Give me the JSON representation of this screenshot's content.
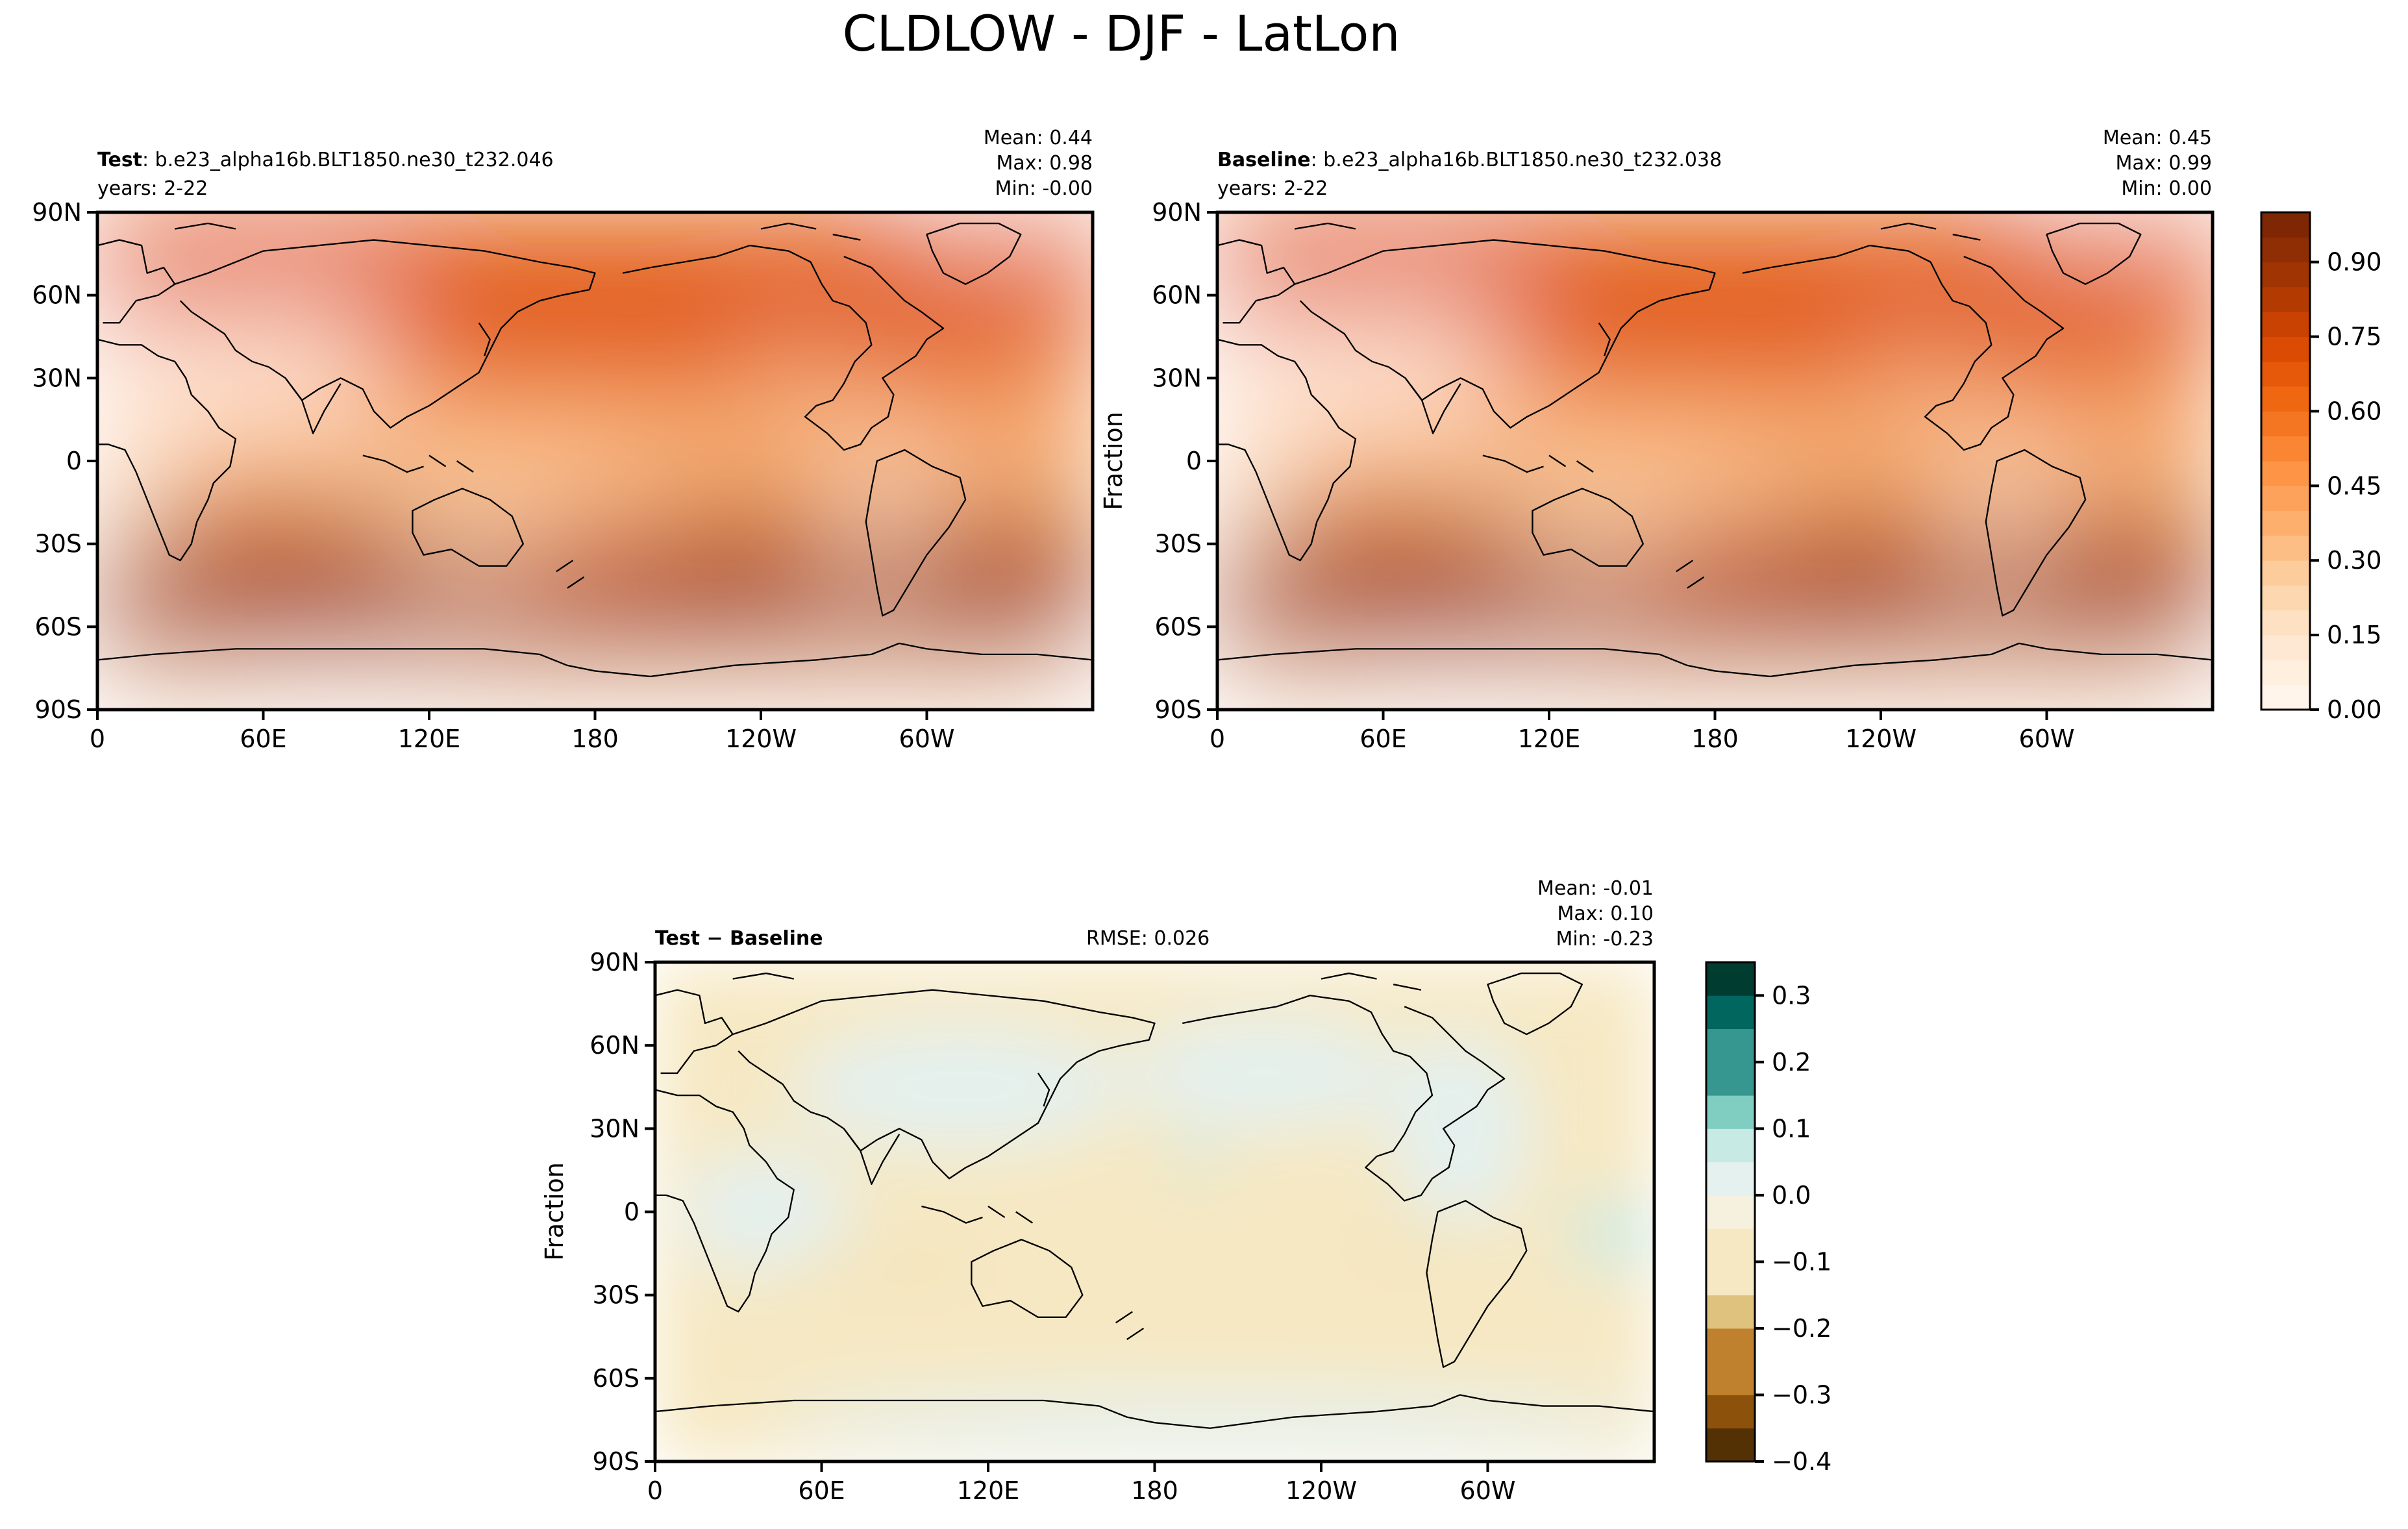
{
  "figure": {
    "title": "CLDLOW - DJF - LatLon"
  },
  "colors": {
    "sequential": [
      "#fff5eb",
      "#fee6ce",
      "#fdd0a2",
      "#fdae6b",
      "#fd8d3c",
      "#f16913",
      "#d94801",
      "#a63603",
      "#7f2704"
    ],
    "diverging": [
      "#543005",
      "#8c510a",
      "#bf812d",
      "#dfc27d",
      "#f6e8c3",
      "#f5f5f5",
      "#c7eae5",
      "#80cdc1",
      "#35978f",
      "#01665e",
      "#003c30"
    ],
    "coast": "#000000"
  },
  "panels": {
    "test": {
      "label_bold": "Test",
      "label_rest": ": b.e23_alpha16b.BLT1850.ne30_t232.046",
      "years": "years: 2-22",
      "stats": [
        "Mean:  0.44",
        "Max:  0.98",
        "Min: -0.00"
      ]
    },
    "baseline": {
      "label_bold": "Baseline",
      "label_rest": ": b.e23_alpha16b.BLT1850.ne30_t232.038",
      "years": "years: 2-22",
      "stats": [
        "Mean:  0.45",
        "Max:  0.99",
        "Min:  0.00"
      ],
      "ylabel": "Fraction"
    },
    "diff": {
      "label": "Test − Baseline",
      "rmse": "RMSE: 0.026",
      "stats": [
        "Mean: -0.01",
        "Max:  0.10",
        "Min: -0.23"
      ],
      "ylabel": "Fraction"
    }
  },
  "chart_data": [
    {
      "type": "heatmap",
      "panel": "test",
      "projection": "PlateCarree, central longitude 180",
      "x_ticks": [
        "0",
        "60E",
        "120E",
        "180",
        "120W",
        "60W"
      ],
      "y_ticks": [
        "90N",
        "60N",
        "30N",
        "0",
        "30S",
        "60S",
        "90S"
      ],
      "xlim": [
        0,
        360
      ],
      "ylim": [
        -90,
        90
      ],
      "stats": {
        "mean": 0.44,
        "max": 0.98,
        "min": -0.0
      }
    },
    {
      "type": "heatmap",
      "panel": "baseline",
      "projection": "PlateCarree, central longitude 180",
      "x_ticks": [
        "0",
        "60E",
        "120E",
        "180",
        "120W",
        "60W"
      ],
      "y_ticks": [
        "90N",
        "60N",
        "30N",
        "0",
        "30S",
        "60S",
        "90S"
      ],
      "xlim": [
        0,
        360
      ],
      "ylim": [
        -90,
        90
      ],
      "stats": {
        "mean": 0.45,
        "max": 0.99,
        "min": 0.0
      },
      "colorbar": {
        "ticks": [
          "0.00",
          "0.15",
          "0.30",
          "0.45",
          "0.60",
          "0.75",
          "0.90"
        ],
        "range": [
          0,
          1
        ],
        "levels": 20
      }
    },
    {
      "type": "heatmap",
      "panel": "diff",
      "projection": "PlateCarree, central longitude 180",
      "x_ticks": [
        "0",
        "60E",
        "120E",
        "180",
        "120W",
        "60W"
      ],
      "y_ticks": [
        "90N",
        "60N",
        "30N",
        "0",
        "30S",
        "60S",
        "90S"
      ],
      "xlim": [
        0,
        360
      ],
      "ylim": [
        -90,
        90
      ],
      "stats": {
        "mean": -0.01,
        "max": 0.1,
        "min": -0.23,
        "rmse": 0.026
      },
      "colorbar": {
        "ticks": [
          "−0.4",
          "−0.3",
          "−0.2",
          "−0.1",
          "0.0",
          "0.1",
          "0.2",
          "0.3"
        ],
        "range": [
          -0.4,
          0.35
        ],
        "levels": 15
      }
    }
  ]
}
